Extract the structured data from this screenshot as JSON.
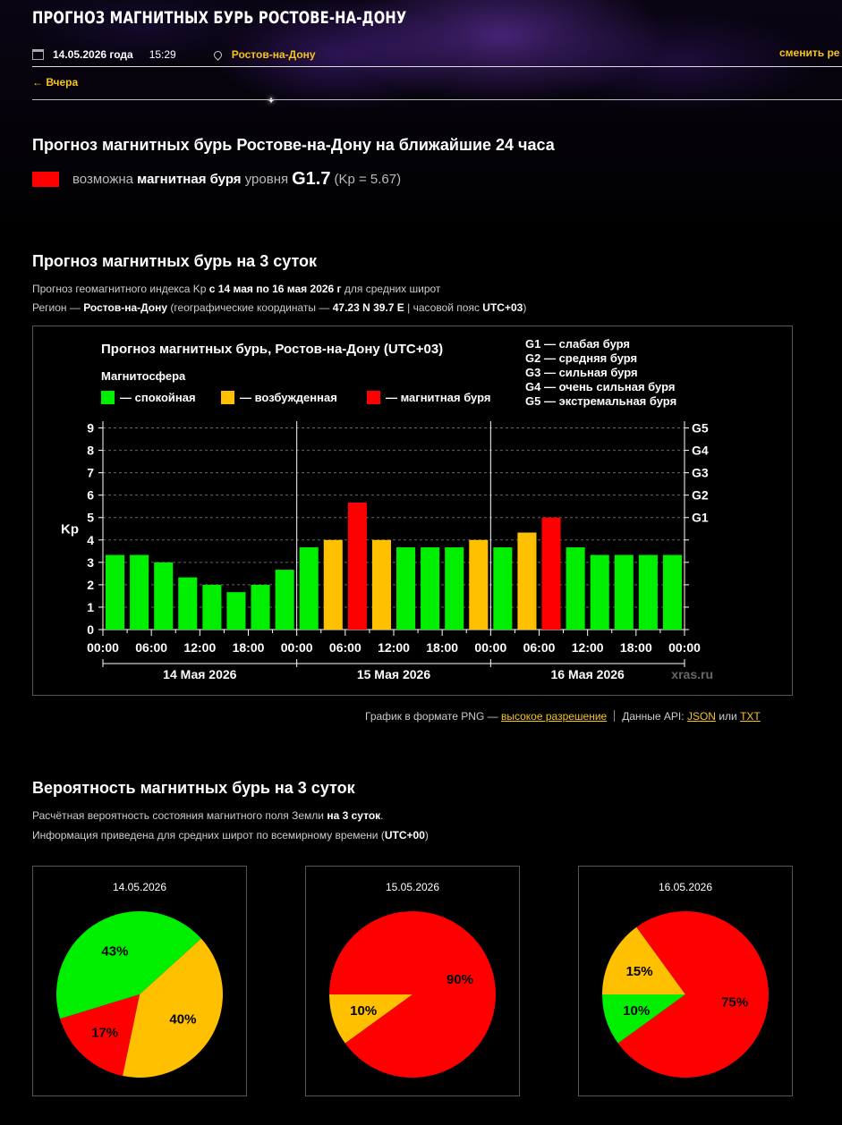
{
  "header": {
    "title": "ПРОГНОЗ МАГНИТНЫХ БУРЬ РОСТОВЕ-НА-ДОНУ",
    "date": "14.05.2026 года",
    "time": "15:29",
    "city": "Ростов-на-Дону",
    "change_label": "сменить ре",
    "back_label": "← Вчера",
    "calendar_icon": "calendar-icon",
    "location_icon": "location-pin-icon"
  },
  "forecast24": {
    "heading": "Прогноз магнитных бурь Ростове-на-Дону на ближайшие 24 часа",
    "prefix": "возможна",
    "storm": "магнитная буря",
    "level_prefix": "уровня",
    "level": "G1.7",
    "kp": "(Kp = 5.67)",
    "color": "#ff0000"
  },
  "forecast3": {
    "heading": "Прогноз магнитных бурь на 3 суток",
    "line1_a": "Прогноз геомагнитного индекса Kp",
    "line1_b": "с 14 мая по 16 мая 2026 г",
    "line1_c": "для средних широт",
    "line2_a": "Регион —",
    "line2_b": "Ростов-на-Дону",
    "line2_c": "(географические координаты —",
    "line2_d": "47.23 N 39.7 E",
    "line2_e": "| часовой пояс",
    "line2_f": "UTC+03",
    "line2_g": ")"
  },
  "links": {
    "png_prefix": "График в формате PNG —",
    "png_link": "высокое разрешение",
    "api_prefix": "Данные API:",
    "json": "JSON",
    "or": "или",
    "txt": "TXT"
  },
  "chart_data": [
    {
      "type": "bar",
      "title": "Прогноз магнитных бурь, Ростов-на-Дону (UTC+03)",
      "subtitle": "Магнитосфера",
      "ylabel": "Kp",
      "ylim": [
        0,
        9
      ],
      "yticks": [
        "0",
        "1",
        "2",
        "3",
        "4",
        "5",
        "6",
        "7",
        "8",
        "9"
      ],
      "right_ticks": [
        {
          "value": 5,
          "label": "G1"
        },
        {
          "value": 6,
          "label": "G2"
        },
        {
          "value": 7,
          "label": "G3"
        },
        {
          "value": 8,
          "label": "G4"
        },
        {
          "value": 9,
          "label": "G5"
        }
      ],
      "legend": [
        {
          "label": "— спокойная",
          "color": "#00ee00"
        },
        {
          "label": "— возбужденная",
          "color": "#ffc000"
        },
        {
          "label": "— магнитная буря",
          "color": "#ff0000"
        }
      ],
      "g_legend": [
        "G1 — слабая буря",
        "G2 — средняя буря",
        "G3 — сильная буря",
        "G4 — очень сильная буря",
        "G5 — экстремальная буря"
      ],
      "days": [
        "14 Мая 2026",
        "15 Мая 2026",
        "16 Мая 2026"
      ],
      "time_ticks": [
        "00:00",
        "06:00",
        "12:00",
        "18:00",
        "00:00",
        "06:00",
        "12:00",
        "18:00",
        "00:00",
        "06:00",
        "12:00",
        "18:00",
        "00:00"
      ],
      "values": [
        3.33,
        3.33,
        3.0,
        2.33,
        2.0,
        1.67,
        2.0,
        2.67,
        3.67,
        4.0,
        5.67,
        4.0,
        3.67,
        3.67,
        3.67,
        4.0,
        3.67,
        4.33,
        5.0,
        3.67,
        3.33,
        3.33,
        3.33,
        3.33
      ],
      "levels": [
        "q",
        "q",
        "q",
        "q",
        "q",
        "q",
        "q",
        "q",
        "q",
        "a",
        "s",
        "a",
        "q",
        "q",
        "q",
        "a",
        "q",
        "a",
        "s",
        "q",
        "q",
        "q",
        "q",
        "q"
      ],
      "colors": {
        "q": "#00ee00",
        "a": "#ffc000",
        "s": "#ff0000"
      },
      "grid": true,
      "watermark": "xras.ru"
    },
    {
      "type": "pie",
      "title": "14.05.2026",
      "slices": [
        {
          "label": "43%",
          "value": 43,
          "color": "#00ee00"
        },
        {
          "label": "40%",
          "value": 40,
          "color": "#ffc000"
        },
        {
          "label": "17%",
          "value": 17,
          "color": "#ff0000"
        }
      ]
    },
    {
      "type": "pie",
      "title": "15.05.2026",
      "slices": [
        {
          "label": "",
          "value": 0,
          "color": "#00ee00"
        },
        {
          "label": "10%",
          "value": 10,
          "color": "#ffc000"
        },
        {
          "label": "90%",
          "value": 90,
          "color": "#ff0000"
        }
      ]
    },
    {
      "type": "pie",
      "title": "16.05.2026",
      "slices": [
        {
          "label": "15%",
          "value": 15,
          "color": "#ffc000"
        },
        {
          "label": "10%",
          "value": 10,
          "color": "#00ee00"
        },
        {
          "label": "75%",
          "value": 75,
          "color": "#ff0000"
        }
      ]
    }
  ],
  "probability": {
    "heading": "Вероятность магнитных бурь на 3 суток",
    "line1_a": "Расчётная вероятность состояния магнитного поля Земли",
    "line1_b": "на 3 суток",
    "line1_c": ".",
    "line2_a": "Информация приведена для средних широт по всемирному времени (",
    "line2_b": "UTC+00",
    "line2_c": ")"
  }
}
